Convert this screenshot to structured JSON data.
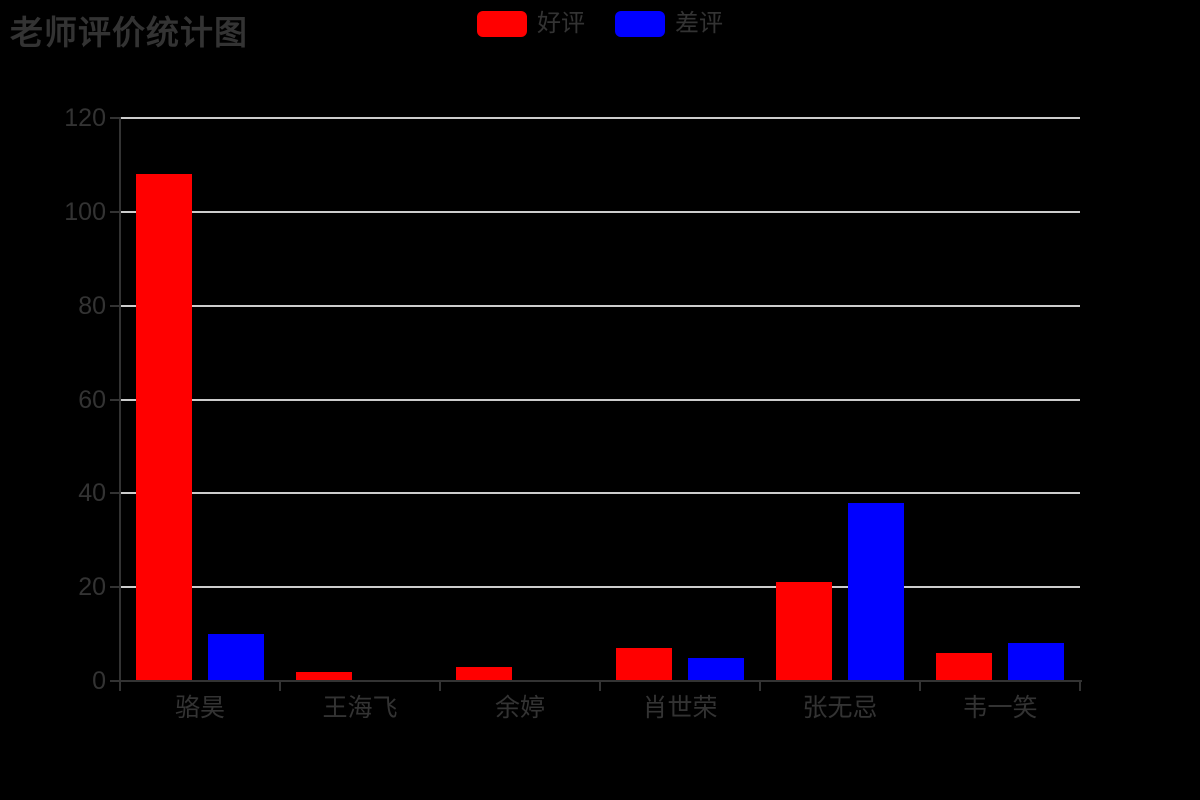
{
  "title": "老师评价统计图",
  "legend": [
    {
      "label": "好评",
      "color": "#ff0000"
    },
    {
      "label": "差评",
      "color": "#0000ff"
    }
  ],
  "colors": {
    "background": "#000000",
    "text": "#333333",
    "axis": "#333333",
    "grid": "#cccccc",
    "positive": "#ff0000",
    "negative": "#0000ff"
  },
  "chart_data": {
    "type": "bar",
    "title": "老师评价统计图",
    "categories": [
      "骆昊",
      "王海飞",
      "余婷",
      "肖世荣",
      "张无忌",
      "韦一笑"
    ],
    "series": [
      {
        "name": "好评",
        "color": "#ff0000",
        "values": [
          108,
          2,
          3,
          7,
          21,
          6
        ]
      },
      {
        "name": "差评",
        "color": "#0000ff",
        "values": [
          10,
          0,
          0,
          5,
          38,
          8
        ]
      }
    ],
    "xlabel": "",
    "ylabel": "",
    "ylim": [
      0,
      120
    ],
    "yticks": [
      0,
      20,
      40,
      60,
      80,
      100,
      120
    ],
    "grid": true,
    "legend_position": "top-center"
  }
}
